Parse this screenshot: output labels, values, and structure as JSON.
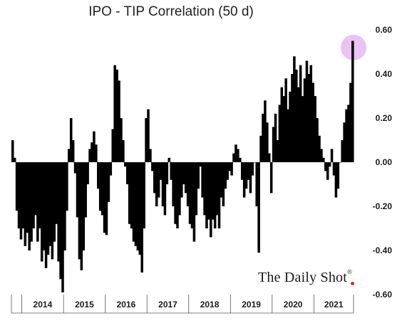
{
  "chart_data": {
    "type": "bar",
    "title": "IPO - TIP Correlation (50 d)",
    "xlabel": "",
    "ylabel": "",
    "ylim": [
      -0.6,
      0.6
    ],
    "xlim": [
      2013.75,
      2021.95
    ],
    "y_ticks": [
      "0.60",
      "0.40",
      "0.20",
      "0.00",
      "-0.20",
      "-0.40",
      "-0.60"
    ],
    "y_tick_values": [
      0.6,
      0.4,
      0.2,
      0.0,
      -0.2,
      -0.4,
      -0.6
    ],
    "x_ticks": [
      "2014",
      "2015",
      "2016",
      "2017",
      "2018",
      "2019",
      "2020",
      "2021"
    ],
    "y_axis_position": "right",
    "grid": false,
    "bar_color": "#000000",
    "highlight": {
      "x": 2021.9,
      "y": 0.52,
      "color": "#e6b3f0"
    },
    "series": [
      {
        "values": [
          {
            "x": 2013.75,
            "y": 0.1
          },
          {
            "x": 2013.8,
            "y": 0.02
          },
          {
            "x": 2013.85,
            "y": -0.22
          },
          {
            "x": 2013.9,
            "y": -0.3
          },
          {
            "x": 2013.95,
            "y": -0.35
          },
          {
            "x": 2014.0,
            "y": -0.3
          },
          {
            "x": 2014.05,
            "y": -0.38
          },
          {
            "x": 2014.1,
            "y": -0.32
          },
          {
            "x": 2014.15,
            "y": -0.4
          },
          {
            "x": 2014.2,
            "y": -0.36
          },
          {
            "x": 2014.25,
            "y": -0.3
          },
          {
            "x": 2014.3,
            "y": -0.24
          },
          {
            "x": 2014.35,
            "y": -0.36
          },
          {
            "x": 2014.4,
            "y": -0.3
          },
          {
            "x": 2014.45,
            "y": -0.45
          },
          {
            "x": 2014.5,
            "y": -0.4
          },
          {
            "x": 2014.55,
            "y": -0.48
          },
          {
            "x": 2014.6,
            "y": -0.42
          },
          {
            "x": 2014.65,
            "y": -0.38
          },
          {
            "x": 2014.7,
            "y": -0.44
          },
          {
            "x": 2014.75,
            "y": -0.36
          },
          {
            "x": 2014.8,
            "y": -0.28
          },
          {
            "x": 2014.85,
            "y": -0.45
          },
          {
            "x": 2014.9,
            "y": -0.53
          },
          {
            "x": 2014.95,
            "y": -0.59
          },
          {
            "x": 2015.0,
            "y": -0.4
          },
          {
            "x": 2015.05,
            "y": -0.22
          },
          {
            "x": 2015.1,
            "y": 0.06
          },
          {
            "x": 2015.15,
            "y": 0.2
          },
          {
            "x": 2015.2,
            "y": 0.1
          },
          {
            "x": 2015.25,
            "y": -0.05
          },
          {
            "x": 2015.3,
            "y": -0.25
          },
          {
            "x": 2015.35,
            "y": -0.44
          },
          {
            "x": 2015.4,
            "y": -0.49
          },
          {
            "x": 2015.45,
            "y": -0.4
          },
          {
            "x": 2015.5,
            "y": -0.25
          },
          {
            "x": 2015.55,
            "y": -0.1
          },
          {
            "x": 2015.6,
            "y": 0.06
          },
          {
            "x": 2015.65,
            "y": 0.09
          },
          {
            "x": 2015.7,
            "y": 0.14
          },
          {
            "x": 2015.75,
            "y": 0.08
          },
          {
            "x": 2015.8,
            "y": -0.12
          },
          {
            "x": 2015.85,
            "y": -0.22
          },
          {
            "x": 2015.9,
            "y": -0.24
          },
          {
            "x": 2015.95,
            "y": -0.32
          },
          {
            "x": 2016.0,
            "y": -0.33
          },
          {
            "x": 2016.05,
            "y": -0.18
          },
          {
            "x": 2016.1,
            "y": -0.06
          },
          {
            "x": 2016.15,
            "y": 0.15
          },
          {
            "x": 2016.2,
            "y": 0.44
          },
          {
            "x": 2016.25,
            "y": 0.42
          },
          {
            "x": 2016.3,
            "y": 0.37
          },
          {
            "x": 2016.35,
            "y": 0.2
          },
          {
            "x": 2016.4,
            "y": 0.1
          },
          {
            "x": 2016.45,
            "y": -0.02
          },
          {
            "x": 2016.5,
            "y": -0.1
          },
          {
            "x": 2016.55,
            "y": -0.28
          },
          {
            "x": 2016.6,
            "y": -0.3
          },
          {
            "x": 2016.65,
            "y": -0.36
          },
          {
            "x": 2016.7,
            "y": -0.38
          },
          {
            "x": 2016.75,
            "y": -0.4
          },
          {
            "x": 2016.8,
            "y": -0.42
          },
          {
            "x": 2016.85,
            "y": -0.5
          },
          {
            "x": 2016.9,
            "y": -0.3
          },
          {
            "x": 2016.95,
            "y": 0.2
          },
          {
            "x": 2017.0,
            "y": 0.24
          },
          {
            "x": 2017.05,
            "y": 0.06
          },
          {
            "x": 2017.1,
            "y": -0.04
          },
          {
            "x": 2017.15,
            "y": -0.14
          },
          {
            "x": 2017.2,
            "y": -0.2
          },
          {
            "x": 2017.25,
            "y": -0.16
          },
          {
            "x": 2017.3,
            "y": -0.08
          },
          {
            "x": 2017.35,
            "y": -0.2
          },
          {
            "x": 2017.4,
            "y": -0.24
          },
          {
            "x": 2017.45,
            "y": -0.1
          },
          {
            "x": 2017.5,
            "y": 0.02
          },
          {
            "x": 2017.55,
            "y": -0.08
          },
          {
            "x": 2017.6,
            "y": -0.2
          },
          {
            "x": 2017.65,
            "y": -0.28
          },
          {
            "x": 2017.7,
            "y": -0.3
          },
          {
            "x": 2017.75,
            "y": -0.24
          },
          {
            "x": 2017.8,
            "y": -0.16
          },
          {
            "x": 2017.85,
            "y": -0.1
          },
          {
            "x": 2017.9,
            "y": -0.14
          },
          {
            "x": 2017.95,
            "y": -0.2
          },
          {
            "x": 2018.0,
            "y": -0.28
          },
          {
            "x": 2018.05,
            "y": -0.3
          },
          {
            "x": 2018.1,
            "y": -0.36
          },
          {
            "x": 2018.15,
            "y": -0.24
          },
          {
            "x": 2018.2,
            "y": -0.12
          },
          {
            "x": 2018.25,
            "y": -0.02
          },
          {
            "x": 2018.3,
            "y": -0.16
          },
          {
            "x": 2018.35,
            "y": -0.24
          },
          {
            "x": 2018.4,
            "y": -0.3
          },
          {
            "x": 2018.45,
            "y": -0.26
          },
          {
            "x": 2018.5,
            "y": -0.34
          },
          {
            "x": 2018.55,
            "y": -0.26
          },
          {
            "x": 2018.6,
            "y": -0.3
          },
          {
            "x": 2018.65,
            "y": -0.24
          },
          {
            "x": 2018.7,
            "y": -0.3
          },
          {
            "x": 2018.75,
            "y": -0.16
          },
          {
            "x": 2018.8,
            "y": -0.2
          },
          {
            "x": 2018.85,
            "y": -0.12
          },
          {
            "x": 2018.9,
            "y": -0.08
          },
          {
            "x": 2018.95,
            "y": -0.04
          },
          {
            "x": 2019.0,
            "y": -0.06
          },
          {
            "x": 2019.05,
            "y": 0.04
          },
          {
            "x": 2019.1,
            "y": 0.08
          },
          {
            "x": 2019.15,
            "y": 0.06
          },
          {
            "x": 2019.2,
            "y": 0.02
          },
          {
            "x": 2019.25,
            "y": -0.08
          },
          {
            "x": 2019.3,
            "y": -0.16
          },
          {
            "x": 2019.35,
            "y": -0.12
          },
          {
            "x": 2019.4,
            "y": -0.08
          },
          {
            "x": 2019.45,
            "y": -0.14
          },
          {
            "x": 2019.5,
            "y": -0.06
          },
          {
            "x": 2019.55,
            "y": 0.0
          },
          {
            "x": 2019.6,
            "y": -0.2
          },
          {
            "x": 2019.65,
            "y": -0.41
          },
          {
            "x": 2019.7,
            "y": 0.12
          },
          {
            "x": 2019.75,
            "y": 0.22
          },
          {
            "x": 2019.8,
            "y": 0.28
          },
          {
            "x": 2019.85,
            "y": 0.18
          },
          {
            "x": 2019.9,
            "y": 0.04
          },
          {
            "x": 2019.95,
            "y": -0.14
          },
          {
            "x": 2020.0,
            "y": 0.16
          },
          {
            "x": 2020.05,
            "y": 0.22
          },
          {
            "x": 2020.1,
            "y": 0.1
          },
          {
            "x": 2020.15,
            "y": 0.26
          },
          {
            "x": 2020.2,
            "y": 0.34
          },
          {
            "x": 2020.25,
            "y": 0.3
          },
          {
            "x": 2020.3,
            "y": 0.38
          },
          {
            "x": 2020.35,
            "y": 0.24
          },
          {
            "x": 2020.4,
            "y": 0.32
          },
          {
            "x": 2020.45,
            "y": 0.4
          },
          {
            "x": 2020.5,
            "y": 0.48
          },
          {
            "x": 2020.55,
            "y": 0.42
          },
          {
            "x": 2020.6,
            "y": 0.34
          },
          {
            "x": 2020.65,
            "y": 0.44
          },
          {
            "x": 2020.7,
            "y": 0.3
          },
          {
            "x": 2020.75,
            "y": 0.38
          },
          {
            "x": 2020.8,
            "y": 0.46
          },
          {
            "x": 2020.85,
            "y": 0.4
          },
          {
            "x": 2020.9,
            "y": 0.44
          },
          {
            "x": 2020.95,
            "y": 0.36
          },
          {
            "x": 2021.0,
            "y": 0.3
          },
          {
            "x": 2021.05,
            "y": 0.2
          },
          {
            "x": 2021.1,
            "y": 0.12
          },
          {
            "x": 2021.15,
            "y": 0.06
          },
          {
            "x": 2021.2,
            "y": 0.02
          },
          {
            "x": 2021.25,
            "y": -0.04
          },
          {
            "x": 2021.3,
            "y": -0.08
          },
          {
            "x": 2021.35,
            "y": -0.02
          },
          {
            "x": 2021.4,
            "y": 0.06
          },
          {
            "x": 2021.45,
            "y": -0.06
          },
          {
            "x": 2021.5,
            "y": -0.16
          },
          {
            "x": 2021.55,
            "y": -0.12
          },
          {
            "x": 2021.6,
            "y": 0.0
          },
          {
            "x": 2021.65,
            "y": 0.1
          },
          {
            "x": 2021.7,
            "y": 0.18
          },
          {
            "x": 2021.75,
            "y": 0.24
          },
          {
            "x": 2021.8,
            "y": 0.26
          },
          {
            "x": 2021.85,
            "y": 0.36
          },
          {
            "x": 2021.9,
            "y": 0.55
          }
        ]
      }
    ]
  },
  "watermark": {
    "text": "The Daily Shot",
    "mark": "®"
  }
}
